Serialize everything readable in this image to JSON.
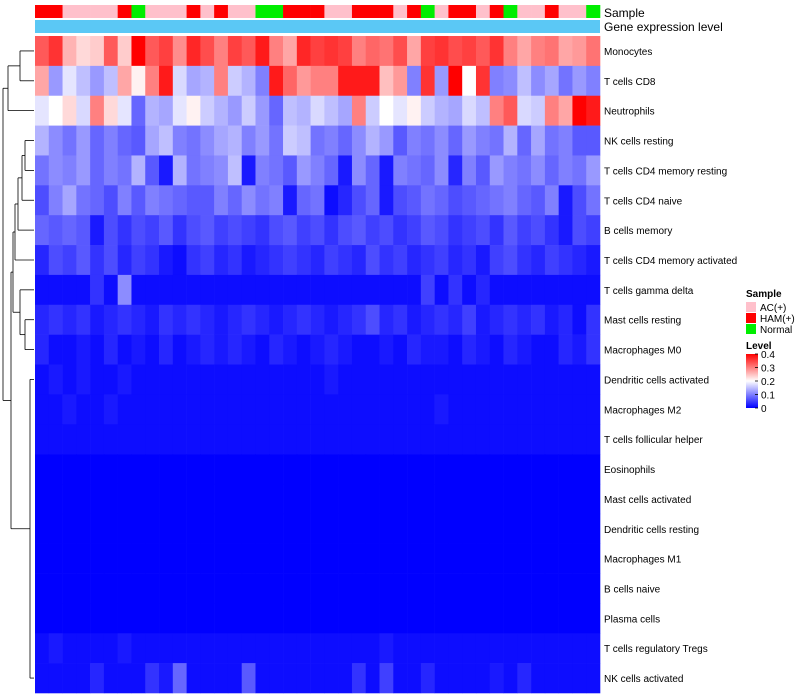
{
  "chart_data": {
    "type": "heatmap",
    "title": "",
    "annotation_tracks": [
      {
        "name": "Sample",
        "values": [
          "HAM(+)",
          "HAM(+)",
          "AC(+)",
          "AC(+)",
          "AC(+)",
          "AC(+)",
          "HAM(+)",
          "Normal",
          "AC(+)",
          "AC(+)",
          "AC(+)",
          "HAM(+)",
          "AC(+)",
          "HAM(+)",
          "AC(+)",
          "AC(+)",
          "Normal",
          "Normal",
          "HAM(+)",
          "HAM(+)",
          "HAM(+)",
          "AC(+)",
          "AC(+)",
          "HAM(+)",
          "HAM(+)",
          "HAM(+)",
          "AC(+)",
          "HAM(+)",
          "Normal",
          "AC(+)",
          "HAM(+)",
          "HAM(+)",
          "AC(+)",
          "HAM(+)",
          "Normal",
          "AC(+)",
          "AC(+)",
          "HAM(+)",
          "AC(+)",
          "AC(+)",
          "Normal"
        ]
      },
      {
        "name": "Gene expression level",
        "values": "all"
      }
    ],
    "rows": [
      "Monocytes",
      "T cells CD8",
      "Neutrophils",
      "NK cells resting",
      "T cells CD4 memory resting",
      "T cells CD4 naive",
      "B cells memory",
      "T cells CD4 memory activated",
      "T cells gamma delta",
      "Mast cells resting",
      "Macrophages M0",
      "Dendritic cells activated",
      "Macrophages M2",
      "T cells follicular helper",
      "Eosinophils",
      "Mast cells activated",
      "Dendritic cells resting",
      "Macrophages M1",
      "B cells naive",
      "Plasma cells",
      "T cells regulatory  Tregs",
      "NK cells activated"
    ],
    "values": [
      [
        0.33,
        0.36,
        0.26,
        0.23,
        0.24,
        0.33,
        0.24,
        0.4,
        0.33,
        0.35,
        0.29,
        0.37,
        0.34,
        0.3,
        0.35,
        0.33,
        0.38,
        0.3,
        0.27,
        0.37,
        0.35,
        0.36,
        0.35,
        0.3,
        0.32,
        0.31,
        0.34,
        0.27,
        0.35,
        0.36,
        0.34,
        0.35,
        0.33,
        0.36,
        0.3,
        0.27,
        0.3,
        0.31,
        0.27,
        0.28,
        0.31
      ],
      [
        0.27,
        0.12,
        0.18,
        0.15,
        0.12,
        0.15,
        0.27,
        0.21,
        0.3,
        0.38,
        0.17,
        0.13,
        0.14,
        0.3,
        0.16,
        0.14,
        0.1,
        0.38,
        0.32,
        0.28,
        0.3,
        0.3,
        0.38,
        0.38,
        0.38,
        0.25,
        0.28,
        0.1,
        0.36,
        0.12,
        0.4,
        0.2,
        0.36,
        0.1,
        0.11,
        0.15,
        0.11,
        0.13,
        0.09,
        0.12,
        0.1
      ],
      [
        0.18,
        0.2,
        0.23,
        0.17,
        0.3,
        0.23,
        0.18,
        0.08,
        0.14,
        0.13,
        0.18,
        0.21,
        0.16,
        0.14,
        0.12,
        0.16,
        0.12,
        0.08,
        0.15,
        0.14,
        0.17,
        0.15,
        0.13,
        0.3,
        0.16,
        0.2,
        0.18,
        0.21,
        0.16,
        0.14,
        0.13,
        0.17,
        0.15,
        0.3,
        0.33,
        0.17,
        0.16,
        0.3,
        0.27,
        0.4,
        0.38
      ],
      [
        0.14,
        0.11,
        0.09,
        0.12,
        0.08,
        0.1,
        0.08,
        0.07,
        0.13,
        0.15,
        0.1,
        0.09,
        0.11,
        0.13,
        0.14,
        0.1,
        0.12,
        0.09,
        0.16,
        0.15,
        0.09,
        0.1,
        0.08,
        0.11,
        0.14,
        0.12,
        0.07,
        0.1,
        0.09,
        0.11,
        0.08,
        0.12,
        0.1,
        0.09,
        0.14,
        0.08,
        0.13,
        0.09,
        0.1,
        0.07,
        0.07
      ],
      [
        0.09,
        0.11,
        0.1,
        0.12,
        0.08,
        0.1,
        0.09,
        0.14,
        0.07,
        0.02,
        0.14,
        0.09,
        0.1,
        0.11,
        0.15,
        0.02,
        0.1,
        0.09,
        0.07,
        0.12,
        0.1,
        0.08,
        0.02,
        0.11,
        0.08,
        0.02,
        0.1,
        0.09,
        0.08,
        0.11,
        0.03,
        0.1,
        0.07,
        0.12,
        0.1,
        0.09,
        0.11,
        0.08,
        0.1,
        0.09,
        0.12
      ],
      [
        0.06,
        0.1,
        0.13,
        0.09,
        0.08,
        0.06,
        0.1,
        0.07,
        0.1,
        0.09,
        0.08,
        0.07,
        0.07,
        0.1,
        0.08,
        0.11,
        0.09,
        0.1,
        0.02,
        0.08,
        0.09,
        0.01,
        0.03,
        0.06,
        0.08,
        0.02,
        0.06,
        0.07,
        0.09,
        0.08,
        0.06,
        0.07,
        0.08,
        0.09,
        0.1,
        0.08,
        0.07,
        0.1,
        0.02,
        0.06,
        0.09
      ],
      [
        0.08,
        0.07,
        0.08,
        0.07,
        0.02,
        0.06,
        0.04,
        0.06,
        0.05,
        0.07,
        0.04,
        0.06,
        0.07,
        0.05,
        0.06,
        0.05,
        0.04,
        0.06,
        0.07,
        0.05,
        0.06,
        0.04,
        0.06,
        0.07,
        0.05,
        0.06,
        0.04,
        0.05,
        0.07,
        0.06,
        0.04,
        0.05,
        0.06,
        0.04,
        0.07,
        0.05,
        0.06,
        0.04,
        0.02,
        0.06,
        0.05
      ],
      [
        0.03,
        0.06,
        0.05,
        0.07,
        0.04,
        0.06,
        0.03,
        0.05,
        0.04,
        0.02,
        0.01,
        0.04,
        0.05,
        0.03,
        0.04,
        0.02,
        0.03,
        0.04,
        0.05,
        0.04,
        0.03,
        0.05,
        0.04,
        0.03,
        0.06,
        0.04,
        0.05,
        0.03,
        0.04,
        0.05,
        0.03,
        0.04,
        0.02,
        0.05,
        0.06,
        0.04,
        0.03,
        0.05,
        0.04,
        0.03,
        0.02
      ],
      [
        0.01,
        0.01,
        0.01,
        0.01,
        0.04,
        0.01,
        0.11,
        0.01,
        0.01,
        0.01,
        0.01,
        0.01,
        0.01,
        0.01,
        0.01,
        0.01,
        0.01,
        0.01,
        0.01,
        0.01,
        0.01,
        0.01,
        0.01,
        0.01,
        0.01,
        0.01,
        0.01,
        0.01,
        0.05,
        0.01,
        0.04,
        0.01,
        0.03,
        0.01,
        0.01,
        0.01,
        0.01,
        0.01,
        0.01,
        0.01,
        0.01
      ],
      [
        0.03,
        0.04,
        0.03,
        0.04,
        0.02,
        0.03,
        0.04,
        0.03,
        0.02,
        0.04,
        0.03,
        0.04,
        0.03,
        0.02,
        0.03,
        0.04,
        0.03,
        0.02,
        0.03,
        0.04,
        0.03,
        0.02,
        0.03,
        0.04,
        0.06,
        0.03,
        0.04,
        0.02,
        0.03,
        0.04,
        0.03,
        0.05,
        0.02,
        0.03,
        0.04,
        0.03,
        0.04,
        0.02,
        0.03,
        0.01,
        0.04
      ],
      [
        0.03,
        0.01,
        0.01,
        0.02,
        0.01,
        0.03,
        0.01,
        0.02,
        0.01,
        0.03,
        0.01,
        0.02,
        0.03,
        0.02,
        0.03,
        0.02,
        0.01,
        0.03,
        0.02,
        0.01,
        0.02,
        0.03,
        0.02,
        0.01,
        0.01,
        0.02,
        0.01,
        0.03,
        0.02,
        0.02,
        0.01,
        0.03,
        0.02,
        0.01,
        0.03,
        0.02,
        0.01,
        0.01,
        0.03,
        0.02,
        0.04
      ],
      [
        0.01,
        0.02,
        0.01,
        0.02,
        0.01,
        0.01,
        0.02,
        0.01,
        0.01,
        0.01,
        0.01,
        0.01,
        0.01,
        0.01,
        0.01,
        0.01,
        0.01,
        0.01,
        0.01,
        0.01,
        0.01,
        0.02,
        0.01,
        0.01,
        0.01,
        0.01,
        0.01,
        0.01,
        0.01,
        0.01,
        0.01,
        0.01,
        0.01,
        0.01,
        0.01,
        0.01,
        0.01,
        0.01,
        0.01,
        0.01,
        0.01
      ],
      [
        0.01,
        0.01,
        0.02,
        0.01,
        0.01,
        0.02,
        0.01,
        0.01,
        0.01,
        0.01,
        0.01,
        0.01,
        0.01,
        0.01,
        0.01,
        0.01,
        0.01,
        0.01,
        0.01,
        0.01,
        0.01,
        0.01,
        0.01,
        0.01,
        0.01,
        0.01,
        0.01,
        0.01,
        0.01,
        0.02,
        0.01,
        0.01,
        0.01,
        0.01,
        0.01,
        0.01,
        0.01,
        0.01,
        0.01,
        0.01,
        0.01
      ],
      [
        0.01,
        0.01,
        0.01,
        0.01,
        0.01,
        0.01,
        0.01,
        0.01,
        0.01,
        0.01,
        0.01,
        0.01,
        0.01,
        0.01,
        0.01,
        0.01,
        0.01,
        0.01,
        0.01,
        0.01,
        0.01,
        0.01,
        0.01,
        0.01,
        0.01,
        0.01,
        0.01,
        0.01,
        0.01,
        0.01,
        0.01,
        0.01,
        0.01,
        0.01,
        0.01,
        0.01,
        0.01,
        0.01,
        0.01,
        0.01,
        0.01
      ],
      [
        0,
        0,
        0,
        0,
        0,
        0,
        0,
        0,
        0,
        0,
        0,
        0,
        0,
        0,
        0,
        0,
        0,
        0,
        0,
        0,
        0,
        0,
        0,
        0,
        0,
        0,
        0,
        0,
        0,
        0,
        0,
        0,
        0,
        0,
        0,
        0,
        0,
        0,
        0,
        0,
        0
      ],
      [
        0,
        0,
        0,
        0,
        0,
        0,
        0,
        0,
        0,
        0,
        0,
        0,
        0,
        0,
        0,
        0,
        0,
        0,
        0,
        0,
        0,
        0,
        0,
        0,
        0,
        0,
        0,
        0,
        0,
        0,
        0,
        0,
        0,
        0,
        0,
        0,
        0,
        0,
        0,
        0,
        0
      ],
      [
        0,
        0,
        0,
        0,
        0,
        0,
        0,
        0,
        0,
        0,
        0,
        0,
        0,
        0,
        0,
        0,
        0,
        0,
        0,
        0,
        0,
        0,
        0,
        0,
        0,
        0,
        0,
        0,
        0,
        0,
        0,
        0,
        0,
        0,
        0,
        0,
        0,
        0,
        0,
        0,
        0
      ],
      [
        0,
        0,
        0,
        0,
        0,
        0,
        0,
        0,
        0,
        0,
        0,
        0,
        0,
        0,
        0,
        0,
        0,
        0,
        0,
        0,
        0,
        0,
        0,
        0,
        0,
        0,
        0,
        0,
        0,
        0,
        0,
        0,
        0,
        0,
        0,
        0,
        0,
        0,
        0,
        0,
        0
      ],
      [
        0,
        0,
        0,
        0,
        0,
        0,
        0,
        0,
        0,
        0,
        0,
        0,
        0,
        0,
        0,
        0,
        0,
        0,
        0,
        0,
        0,
        0,
        0,
        0,
        0,
        0,
        0,
        0,
        0,
        0,
        0,
        0,
        0,
        0,
        0,
        0,
        0,
        0,
        0,
        0,
        0
      ],
      [
        0,
        0,
        0,
        0,
        0,
        0,
        0,
        0,
        0,
        0,
        0,
        0,
        0,
        0,
        0,
        0,
        0,
        0,
        0,
        0,
        0,
        0,
        0,
        0,
        0,
        0,
        0,
        0,
        0,
        0,
        0,
        0,
        0,
        0,
        0,
        0,
        0,
        0,
        0,
        0,
        0
      ],
      [
        0.01,
        0.02,
        0.01,
        0.01,
        0.01,
        0.01,
        0.02,
        0.01,
        0.01,
        0.01,
        0.01,
        0.01,
        0.01,
        0.01,
        0.01,
        0.01,
        0.01,
        0.01,
        0.01,
        0.01,
        0.01,
        0.01,
        0.01,
        0.01,
        0.01,
        0.02,
        0.01,
        0.01,
        0.01,
        0.01,
        0.01,
        0.01,
        0.01,
        0.01,
        0.01,
        0.01,
        0.01,
        0.01,
        0.01,
        0.01,
        0.01
      ],
      [
        0.01,
        0.01,
        0.01,
        0.01,
        0.03,
        0.01,
        0.01,
        0.01,
        0.04,
        0.02,
        0.08,
        0.01,
        0.01,
        0.01,
        0.01,
        0.07,
        0.01,
        0.01,
        0.01,
        0.01,
        0.01,
        0.01,
        0.01,
        0.04,
        0.01,
        0.05,
        0.01,
        0.01,
        0.03,
        0.01,
        0.01,
        0.01,
        0.01,
        0.02,
        0.01,
        0.03,
        0.01,
        0.01,
        0.01,
        0.01,
        0.01
      ]
    ],
    "legend_sample": {
      "title": "Sample",
      "items": [
        {
          "label": "AC(+)",
          "color": "#ffc0cb"
        },
        {
          "label": "HAM(+)",
          "color": "#ff0000"
        },
        {
          "label": "Normal",
          "color": "#00ee00"
        }
      ]
    },
    "legend_level": {
      "title": "Level",
      "ticks": [
        "0.4",
        "0.3",
        "0.2",
        "0.1",
        "0"
      ],
      "tick_values": [
        0.4,
        0.3,
        0.2,
        0.1,
        0
      ],
      "range": [
        0,
        0.4
      ]
    },
    "colors": {
      "low": "#0000ff",
      "mid": "#ffffff",
      "high": "#ff0000",
      "gene_track": "#5bc8f5"
    }
  }
}
